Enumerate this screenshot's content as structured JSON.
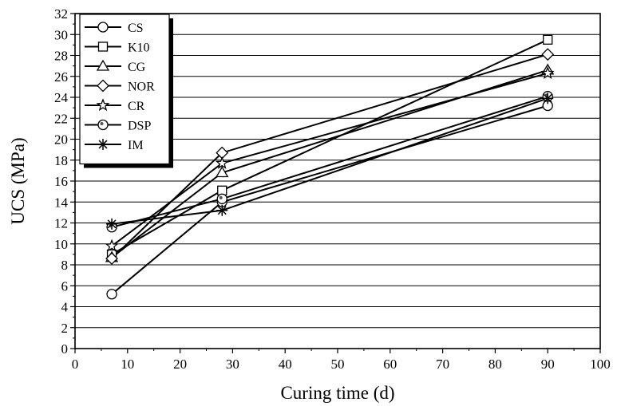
{
  "chart_data": {
    "type": "line",
    "title": "",
    "xlabel": "Curing time (d)",
    "ylabel": "UCS (MPa)",
    "xlim": [
      0,
      100
    ],
    "ylim": [
      0,
      32
    ],
    "xticks": [
      0,
      10,
      20,
      30,
      40,
      50,
      60,
      70,
      80,
      90,
      100
    ],
    "yticks": [
      0,
      2,
      4,
      6,
      8,
      10,
      12,
      14,
      16,
      18,
      20,
      22,
      24,
      26,
      28,
      30,
      32
    ],
    "grid": "horizontal",
    "legend_position": "top-left",
    "x": [
      7,
      28,
      90
    ],
    "series": [
      {
        "name": "CS",
        "marker": "circle",
        "values": [
          5.2,
          14.0,
          23.2
        ]
      },
      {
        "name": "K10",
        "marker": "square",
        "values": [
          9.0,
          15.1,
          29.5
        ]
      },
      {
        "name": "CG",
        "marker": "triangle",
        "values": [
          8.7,
          16.8,
          26.6
        ]
      },
      {
        "name": "NOR",
        "marker": "diamond",
        "values": [
          8.6,
          18.7,
          28.1
        ]
      },
      {
        "name": "CR",
        "marker": "star",
        "values": [
          9.8,
          17.7,
          26.3
        ]
      },
      {
        "name": "DSP",
        "marker": "circle-dotted",
        "values": [
          11.6,
          14.3,
          24.1
        ]
      },
      {
        "name": "IM",
        "marker": "asterisk",
        "values": [
          11.9,
          13.2,
          23.9
        ]
      }
    ]
  }
}
